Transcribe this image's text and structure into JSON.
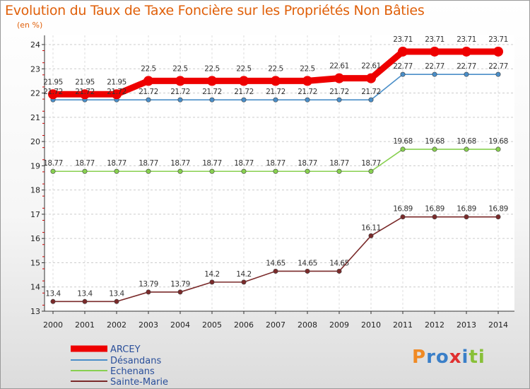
{
  "chart_data": {
    "type": "line",
    "title": "Evolution du Taux de Taxe Foncière sur les Propriétés Non Bâties",
    "ylabel": "(en %)",
    "xlabel": "",
    "ylim": [
      13,
      24
    ],
    "yticks": [
      "13",
      "14",
      "15",
      "16",
      "17",
      "18",
      "19",
      "20",
      "21",
      "22",
      "23",
      "24"
    ],
    "categories": [
      "2000",
      "2001",
      "2002",
      "2003",
      "2004",
      "2005",
      "2006",
      "2007",
      "2008",
      "2009",
      "2010",
      "2011",
      "2012",
      "2013",
      "2014"
    ],
    "series": [
      {
        "name": "ARCEY",
        "color": "#ee0000",
        "values": [
          21.95,
          21.95,
          21.95,
          22.5,
          22.5,
          22.5,
          22.5,
          22.5,
          22.5,
          22.61,
          22.61,
          23.71,
          23.71,
          23.71,
          23.71
        ],
        "labels": [
          "21.95",
          "21.95",
          "21.95",
          "22.5",
          "22.5",
          "22.5",
          "22.5",
          "22.5",
          "22.5",
          "22.61",
          "22.61",
          "23.71",
          "23.71",
          "23.71",
          "23.71"
        ]
      },
      {
        "name": "Désandans",
        "color": "#4a8ec8",
        "values": [
          21.72,
          21.72,
          21.72,
          21.72,
          21.72,
          21.72,
          21.72,
          21.72,
          21.72,
          21.72,
          21.72,
          22.77,
          22.77,
          22.77,
          22.77
        ],
        "labels": [
          "21.72",
          "21.72",
          "21.72",
          "21.72",
          "21.72",
          "21.72",
          "21.72",
          "21.72",
          "21.72",
          "21.72",
          "21.72",
          "22.77",
          "22.77",
          "22.77",
          "22.77"
        ]
      },
      {
        "name": "Echenans",
        "color": "#88d050",
        "values": [
          18.77,
          18.77,
          18.77,
          18.77,
          18.77,
          18.77,
          18.77,
          18.77,
          18.77,
          18.77,
          18.77,
          19.68,
          19.68,
          19.68,
          19.68
        ],
        "labels": [
          "18.77",
          "18.77",
          "18.77",
          "18.77",
          "18.77",
          "18.77",
          "18.77",
          "18.77",
          "18.77",
          "18.77",
          "18.77",
          "19.68",
          "19.68",
          "19.68",
          "19.68"
        ]
      },
      {
        "name": "Sainte-Marie",
        "color": "#7a2a2a",
        "values": [
          13.4,
          13.4,
          13.4,
          13.79,
          13.79,
          14.2,
          14.2,
          14.65,
          14.65,
          14.65,
          16.11,
          16.89,
          16.89,
          16.89,
          16.89
        ],
        "labels": [
          "13.4",
          "13.4",
          "13.4",
          "13.79",
          "13.79",
          "14.2",
          "14.2",
          "14.65",
          "14.65",
          "14.65",
          "16.11",
          "16.89",
          "16.89",
          "16.89",
          "16.89"
        ]
      }
    ]
  },
  "logo": {
    "text": "Proxiti"
  }
}
